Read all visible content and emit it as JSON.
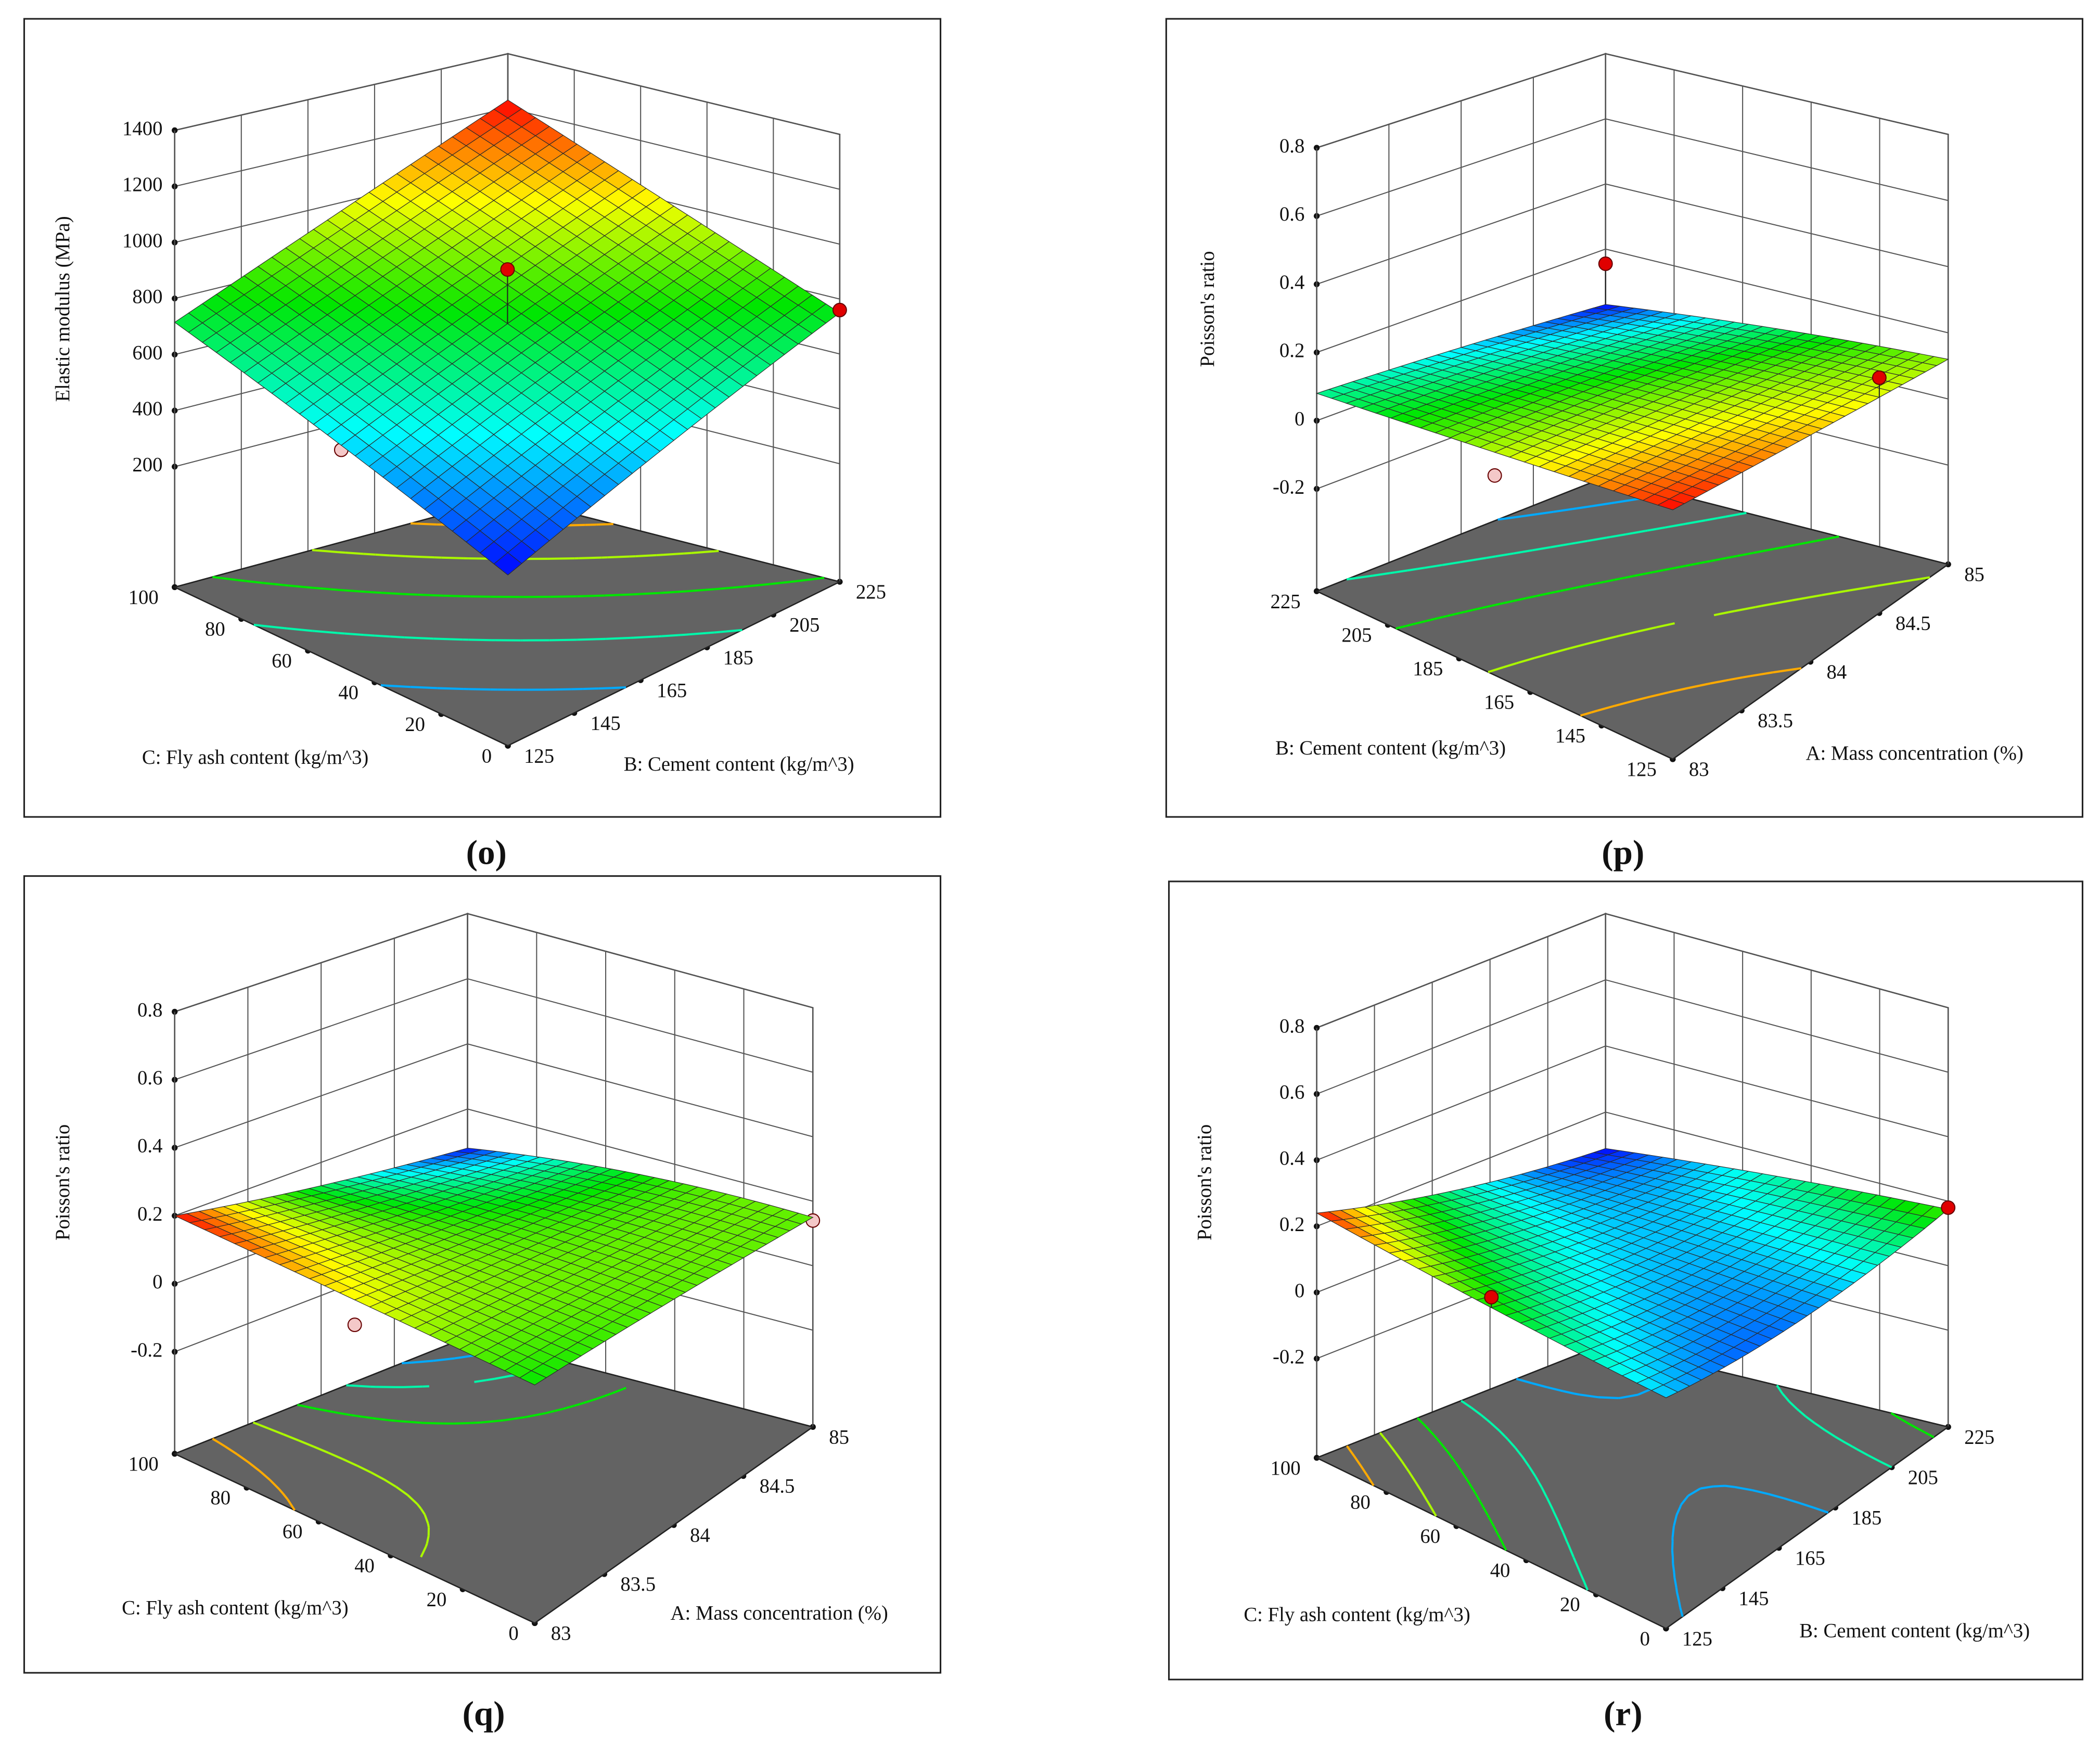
{
  "chart_data": [
    {
      "type": "surface",
      "panel_label": "(o)",
      "zlabel": "Elastic modulus (MPa)",
      "xlabel": "B: Cement content (kg/m^3)",
      "ylabel": "C: Fly ash content (kg/m^3)",
      "xlim": [
        125,
        225
      ],
      "xticks": [
        125,
        145,
        165,
        185,
        205,
        225
      ],
      "ylim": [
        0,
        100
      ],
      "yticks": [
        0,
        20,
        40,
        60,
        80,
        100
      ],
      "zlim": [
        -230,
        1400
      ],
      "zticks": [
        200,
        400,
        600,
        800,
        1000,
        1200,
        1400
      ],
      "grid_x": [
        125,
        175,
        225
      ],
      "grid_y": [
        0,
        50,
        100
      ],
      "z": [
        [
          315,
          530,
          750
        ],
        [
          515,
          750,
          990
        ],
        [
          715,
          970,
          1230
        ]
      ],
      "points": {
        "x": [
          175,
          125,
          225
        ],
        "y": [
          50,
          50,
          0
        ],
        "z": [
          940,
          500,
          760
        ]
      }
    },
    {
      "type": "surface",
      "panel_label": "(p)",
      "zlabel": "Poisson's ratio",
      "xlabel": "A: Mass concentration (%)",
      "ylabel": "B: Cement content (kg/m^3)",
      "xlim": [
        83,
        85
      ],
      "xticks": [
        83,
        83.5,
        84,
        84.5,
        85
      ],
      "ylim": [
        125,
        225
      ],
      "yticks": [
        125,
        145,
        165,
        185,
        205,
        225
      ],
      "zlim": [
        -0.5,
        0.8
      ],
      "zticks": [
        -0.2,
        0,
        0.2,
        0.4,
        0.6,
        0.8
      ],
      "grid_x": [
        83,
        84,
        85
      ],
      "grid_y": [
        125,
        175,
        225
      ],
      "z": [
        [
          0.17,
          0.145,
          0.12
        ],
        [
          0.125,
          0.11,
          0.085
        ],
        [
          0.08,
          0.06,
          0.03
        ]
      ],
      "points": {
        "x": [
          85,
          83,
          84.5
        ],
        "y": [
          225,
          175,
          125
        ],
        "z": [
          0.155,
          0.06,
          0.19
        ]
      }
    },
    {
      "type": "surface",
      "panel_label": "(q)",
      "zlabel": "Poisson's ratio",
      "xlabel": "A: Mass concentration (%)",
      "ylabel": "C: Fly ash content (kg/m^3)",
      "xlim": [
        83,
        85
      ],
      "xticks": [
        83,
        83.5,
        84,
        84.5,
        85
      ],
      "ylim": [
        0,
        100
      ],
      "yticks": [
        0,
        20,
        40,
        60,
        80,
        100
      ],
      "zlim": [
        -0.5,
        0.8
      ],
      "zticks": [
        -0.2,
        0,
        0.2,
        0.4,
        0.6,
        0.8
      ],
      "grid_x": [
        83,
        84,
        85
      ],
      "grid_y": [
        0,
        50,
        100
      ],
      "z": [
        [
          0.14,
          0.15,
          0.15
        ],
        [
          0.17,
          0.15,
          0.14
        ],
        [
          0.2,
          0.13,
          0.08
        ]
      ],
      "points": {
        "x": [
          83,
          85
        ],
        "y": [
          50,
          0
        ],
        "z": [
          0.1,
          0.14
        ]
      }
    },
    {
      "type": "surface",
      "panel_label": "(r)",
      "zlabel": "Poisson's ratio",
      "xlabel": "B: Cement content (kg/m^3)",
      "ylabel": "C: Fly ash content (kg/m^3)",
      "xlim": [
        125,
        225
      ],
      "xticks": [
        125,
        145,
        165,
        185,
        205,
        225
      ],
      "ylim": [
        0,
        100
      ],
      "yticks": [
        0,
        20,
        40,
        60,
        80,
        100
      ],
      "zlim": [
        -0.5,
        0.8
      ],
      "zticks": [
        -0.2,
        0,
        0.2,
        0.4,
        0.6,
        0.8
      ],
      "grid_x": [
        125,
        175,
        225
      ],
      "grid_y": [
        0,
        50,
        100
      ],
      "z": [
        [
          0.12,
          0.11,
          0.175
        ],
        [
          0.17,
          0.12,
          0.14
        ],
        [
          0.24,
          0.14,
          0.09
        ]
      ],
      "points": {
        "x": [
          125,
          225
        ],
        "y": [
          50,
          0
        ],
        "z": [
          0.2,
          0.18
        ]
      }
    }
  ]
}
